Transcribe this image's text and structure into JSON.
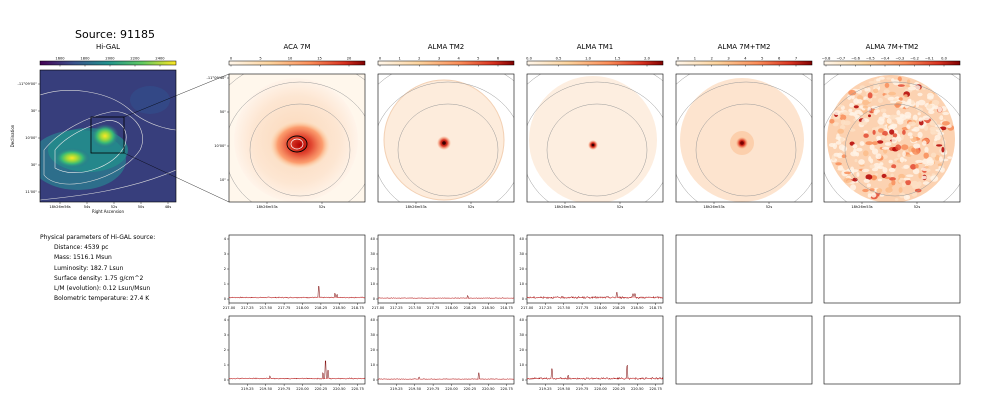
{
  "figure": {
    "title": "Source: 91185"
  },
  "panels": [
    {
      "title": "Hi-GAL",
      "colorbar_ticks": [
        "1600",
        "1800",
        "2000",
        "2200",
        "2400"
      ],
      "colormap": "viridis",
      "xticks": [
        "18h26m56s",
        "54s",
        "52s",
        "50s",
        "48s"
      ],
      "yticks": [
        "-11°09'00\"",
        "30\"",
        "10'00\"",
        "30\"",
        "11'00\""
      ],
      "xlabel": "Right Ascension",
      "ylabel": "Declination"
    },
    {
      "title": "ACA 7M",
      "colorbar_ticks": [
        "0",
        "5",
        "10",
        "15",
        "20"
      ],
      "colormap": "OrRd",
      "xticks": [
        "18h26m53s",
        "52s"
      ],
      "yticks": [
        "-11°09'40\"",
        "50\"",
        "10'00\"",
        "10\""
      ]
    },
    {
      "title": "ALMA TM2",
      "colorbar_ticks": [
        "0",
        "1",
        "2",
        "3",
        "4",
        "5",
        "6"
      ],
      "colormap": "OrRd",
      "xticks": [
        "18h26m53s",
        "52s"
      ]
    },
    {
      "title": "ALMA TM1",
      "colorbar_ticks": [
        "0.0",
        "0.5",
        "1.0",
        "1.5",
        "2.0"
      ],
      "colormap": "OrRd",
      "xticks": [
        "18h26m53s",
        "52s"
      ]
    },
    {
      "title": "ALMA 7M+TM2",
      "colorbar_ticks": [
        "0",
        "1",
        "2",
        "3",
        "4",
        "5",
        "6",
        "7"
      ],
      "colormap": "OrRd",
      "xticks": [
        "18h26m53s",
        "52s"
      ]
    },
    {
      "title": "ALMA 7M+TM2",
      "colorbar_ticks": [
        "−0.8",
        "−0.7",
        "−0.6",
        "−0.5",
        "−0.4",
        "−0.3",
        "−0.2",
        "−0.1",
        "0.0"
      ],
      "colormap": "OrRd",
      "xticks": [
        "18h26m53s",
        "52s"
      ]
    }
  ],
  "info": {
    "heading": "Physical parameters of Hi-GAL source:",
    "lines": [
      "Distance: 4539 pc",
      "Mass: 1516.1 Msun",
      "Luminosity: 182.7 Lsun",
      "Surface density: 1.75 g/cm^2",
      "L/M (evolution): 0.12 Lsun/Msun",
      "Bolometric temperature: 27.4 K"
    ]
  },
  "colors": {
    "spectrum": "#7a0000",
    "baseline": "#ff3030",
    "frame": "#000000"
  },
  "chart_data": [
    {
      "type": "line",
      "panel": "ACA 7M spw row 1",
      "ylim": [
        0,
        4
      ],
      "yticks": [
        "0",
        "1",
        "2",
        "3",
        "4"
      ],
      "xticks": [
        "217.00",
        "217.25",
        "217.50",
        "217.75",
        "218.00",
        "218.25",
        "218.50",
        "218.75"
      ],
      "xlim": [
        217.0,
        218.85
      ],
      "base": 0.1,
      "noise": 0.04,
      "peaks": [
        [
          218.22,
          0.75
        ],
        [
          218.44,
          0.3
        ],
        [
          218.47,
          0.22
        ]
      ]
    },
    {
      "type": "line",
      "panel": "ALMA TM2 spw row 1",
      "ylim": [
        0,
        40
      ],
      "yticks": [
        "0",
        "10",
        "20",
        "30",
        "40"
      ],
      "xticks": [
        "217.00",
        "217.25",
        "217.50",
        "217.75",
        "218.00",
        "218.25",
        "218.50",
        "218.75"
      ],
      "xlim": [
        217.0,
        218.85
      ],
      "base": 0.6,
      "noise": 0.25,
      "peaks": [
        [
          218.22,
          1.6
        ]
      ]
    },
    {
      "type": "line",
      "panel": "ALMA TM1 spw row 1",
      "ylim": [
        0,
        40
      ],
      "yticks": [
        "0",
        "10",
        "20",
        "30",
        "40"
      ],
      "xticks": [
        "217.00",
        "217.25",
        "217.50",
        "217.75",
        "218.00",
        "218.25",
        "218.50",
        "218.75"
      ],
      "xlim": [
        217.0,
        218.85
      ],
      "base": 1.0,
      "noise": 0.7,
      "peaks": [
        [
          218.22,
          3.5
        ],
        [
          218.44,
          2.2
        ],
        [
          218.47,
          2.0
        ]
      ]
    },
    {
      "type": "line",
      "panel": "ACA 7M spw row 2",
      "ylim": [
        0,
        4
      ],
      "yticks": [
        "0",
        "1",
        "2",
        "3",
        "4"
      ],
      "xticks": [
        "219.25",
        "219.50",
        "219.75",
        "220.00",
        "220.25",
        "220.50",
        "220.75"
      ],
      "xlim": [
        219.0,
        220.85
      ],
      "base": 0.1,
      "noise": 0.04,
      "peaks": [
        [
          220.31,
          1.15
        ],
        [
          220.35,
          0.55
        ],
        [
          220.28,
          0.4
        ],
        [
          219.56,
          0.15
        ]
      ]
    },
    {
      "type": "line",
      "panel": "ALMA TM2 spw row 2",
      "ylim": [
        0,
        40
      ],
      "yticks": [
        "0",
        "10",
        "20",
        "30",
        "40"
      ],
      "xticks": [
        "219.25",
        "219.50",
        "219.75",
        "220.00",
        "220.25",
        "220.50",
        "220.75"
      ],
      "xlim": [
        219.0,
        220.85
      ],
      "base": 0.6,
      "noise": 0.25,
      "peaks": [
        [
          220.37,
          4.2
        ],
        [
          219.56,
          1.2
        ]
      ]
    },
    {
      "type": "line",
      "panel": "ALMA TM1 spw row 2",
      "ylim": [
        0,
        40
      ],
      "yticks": [
        "0",
        "10",
        "20",
        "30",
        "40"
      ],
      "xticks": [
        "219.25",
        "219.50",
        "219.75",
        "220.00",
        "220.25",
        "220.50",
        "220.75"
      ],
      "xlim": [
        219.0,
        220.85
      ],
      "base": 1.0,
      "noise": 0.7,
      "peaks": [
        [
          219.34,
          6.5
        ],
        [
          220.36,
          8.5
        ],
        [
          219.56,
          2.0
        ]
      ]
    }
  ]
}
